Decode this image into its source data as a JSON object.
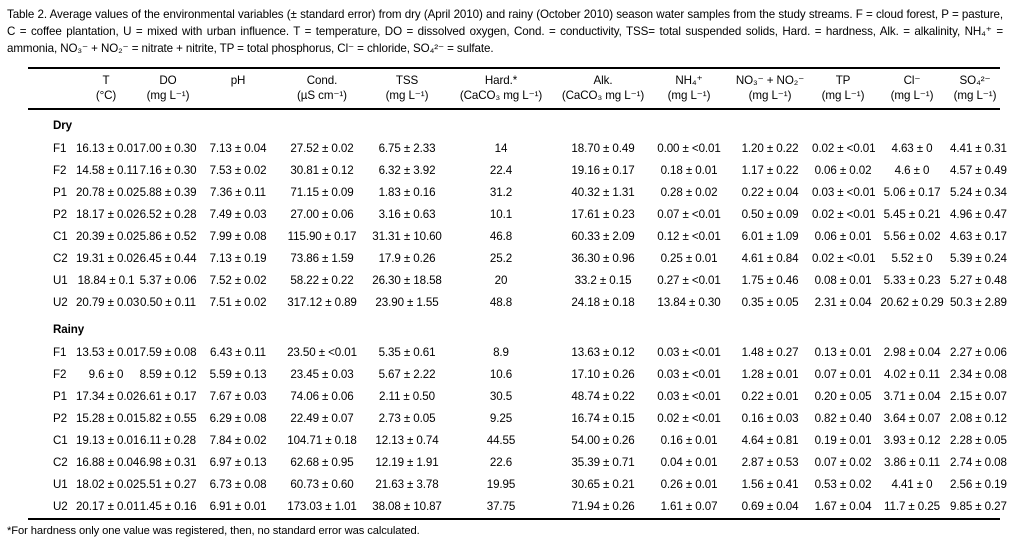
{
  "document": {
    "caption": "Table 2. Average values of the environmental variables (± standard error) from dry (April 2010) and rainy (October 2010) season water samples from the study streams. F = cloud forest, P = pasture, C = coffee plantation, U = mixed with urban influence. T = temperature, DO = dissolved oxygen, Cond. = conductivity, TSS= total suspended solids, Hard. = hardness, Alk. = alkalinity, NH₄⁺ = ammonia, NO₃⁻ + NO₂⁻ = nitrate + nitrite, TP = total phosphorus, Cl⁻ = chloride, SO₄²⁻ = sulfate.",
    "footnote": "*For hardness only one value was registered, then, no standard error was calculated."
  },
  "table": {
    "columns": [
      {
        "name": "",
        "unit": ""
      },
      {
        "name": "T",
        "unit": "(°C)"
      },
      {
        "name": "DO",
        "unit": "(mg L⁻¹)"
      },
      {
        "name": "pH",
        "unit": ""
      },
      {
        "name": "Cond.",
        "unit": "(µS cm⁻¹)"
      },
      {
        "name": "TSS",
        "unit": "(mg L⁻¹)"
      },
      {
        "name": "Hard.*",
        "unit": "(CaCO₃ mg L⁻¹)"
      },
      {
        "name": "Alk.",
        "unit": "(CaCO₃ mg L⁻¹)"
      },
      {
        "name": "NH₄⁺",
        "unit": "(mg L⁻¹)"
      },
      {
        "name": "NO₃⁻ + NO₂⁻",
        "unit": "(mg L⁻¹)"
      },
      {
        "name": "TP",
        "unit": "(mg L⁻¹)"
      },
      {
        "name": "Cl⁻",
        "unit": "(mg L⁻¹)"
      },
      {
        "name": "SO₄²⁻",
        "unit": "(mg L⁻¹)"
      }
    ],
    "sections": [
      {
        "label": "Dry",
        "rows": [
          {
            "site": "F1",
            "values": [
              "16.13 ± 0.01",
              "7.00 ± 0.30",
              "7.13 ± 0.04",
              "27.52 ± 0.02",
              "6.75 ± 2.33",
              "14",
              "18.70 ± 0.49",
              "0.00 ± <0.01",
              "1.20 ± 0.22",
              "0.02 ± <0.01",
              "4.63 ± 0",
              "4.41 ± 0.31"
            ]
          },
          {
            "site": "F2",
            "values": [
              "14.58 ± 0.11",
              "7.16 ± 0.30",
              "7.53 ± 0.02",
              "30.81 ± 0.12",
              "6.32 ± 3.92",
              "22.4",
              "19.16 ± 0.17",
              "0.18 ± 0.01",
              "1.17 ± 0.22",
              "0.06 ± 0.02",
              "4.6 ± 0",
              "4.57 ± 0.49"
            ]
          },
          {
            "site": "P1",
            "values": [
              "20.78 ± 0.02",
              "5.88 ± 0.39",
              "7.36 ± 0.11",
              "71.15 ± 0.09",
              "1.83 ± 0.16",
              "31.2",
              "40.32 ± 1.31",
              "0.28 ± 0.02",
              "0.22 ± 0.04",
              "0.03 ± <0.01",
              "5.06 ± 0.17",
              "5.24 ± 0.34"
            ]
          },
          {
            "site": "P2",
            "values": [
              "18.17 ± 0.02",
              "6.52 ± 0.28",
              "7.49 ± 0.03",
              "27.00 ± 0.06",
              "3.16 ± 0.63",
              "10.1",
              "17.61 ± 0.23",
              "0.07 ± <0.01",
              "0.50 ± 0.09",
              "0.02 ± <0.01",
              "5.45 ± 0.21",
              "4.96 ± 0.47"
            ]
          },
          {
            "site": "C1",
            "values": [
              "20.39 ± 0.02",
              "5.86 ± 0.52",
              "7.99 ± 0.08",
              "115.90 ± 0.17",
              "31.31 ± 10.60",
              "46.8",
              "60.33 ± 2.09",
              "0.12 ± <0.01",
              "6.01 ± 1.09",
              "0.06 ± 0.01",
              "5.56 ± 0.02",
              "4.63 ± 0.17"
            ]
          },
          {
            "site": "C2",
            "values": [
              "19.31 ± 0.02",
              "6.45 ± 0.44",
              "7.13 ± 0.19",
              "73.86 ± 1.59",
              "17.9 ± 0.26",
              "25.2",
              "36.30 ± 0.96",
              "0.25 ± 0.01",
              "4.61 ± 0.84",
              "0.02 ± <0.01",
              "5.52 ± 0",
              "5.39 ± 0.24"
            ]
          },
          {
            "site": "U1",
            "values": [
              "18.84 ± 0.1",
              "5.37 ± 0.06",
              "7.52 ± 0.02",
              "58.22 ± 0.22",
              "26.30 ± 18.58",
              "20",
              "33.2 ± 0.15",
              "0.27 ± <0.01",
              "1.75 ± 0.46",
              "0.08 ± 0.01",
              "5.33 ± 0.23",
              "5.27 ± 0.48"
            ]
          },
          {
            "site": "U2",
            "values": [
              "20.79 ± 0.03",
              "0.50 ± 0.11",
              "7.51 ± 0.02",
              "317.12 ± 0.89",
              "23.90 ± 1.55",
              "48.8",
              "24.18 ± 0.18",
              "13.84 ± 0.30",
              "0.35 ± 0.05",
              "2.31 ± 0.04",
              "20.62 ± 0.29",
              "50.3 ± 2.89"
            ]
          }
        ]
      },
      {
        "label": "Rainy",
        "rows": [
          {
            "site": "F1",
            "values": [
              "13.53 ± 0.01",
              "7.59 ± 0.08",
              "6.43 ± 0.11",
              "23.50 ± <0.01",
              "5.35 ± 0.61",
              "8.9",
              "13.63 ± 0.12",
              "0.03 ± <0.01",
              "1.48 ± 0.27",
              "0.13 ± 0.01",
              "2.98 ± 0.04",
              "2.27 ± 0.06"
            ]
          },
          {
            "site": "F2",
            "values": [
              "9.6 ± 0",
              "8.59 ± 0.12",
              "5.59 ± 0.13",
              "23.45 ± 0.03",
              "5.67 ± 2.22",
              "10.6",
              "17.10 ± 0.26",
              "0.03 ± <0.01",
              "1.28 ± 0.01",
              "0.07 ± 0.01",
              "4.02 ± 0.11",
              "2.34 ± 0.08"
            ]
          },
          {
            "site": "P1",
            "values": [
              "17.34 ± 0.02",
              "6.61 ± 0.17",
              "7.67 ± 0.03",
              "74.06 ± 0.06",
              "2.11 ± 0.50",
              "30.5",
              "48.74 ± 0.22",
              "0.03 ± <0.01",
              "0.22 ± 0.01",
              "0.20 ± 0.05",
              "3.71 ± 0.04",
              "2.15 ± 0.07"
            ]
          },
          {
            "site": "P2",
            "values": [
              "15.28 ± 0.01",
              "5.82 ± 0.55",
              "6.29 ± 0.08",
              "22.49 ± 0.07",
              "2.73 ± 0.05",
              "9.25",
              "16.74 ± 0.15",
              "0.02 ± <0.01",
              "0.16 ± 0.03",
              "0.82 ± 0.40",
              "3.64 ± 0.07",
              "2.08 ± 0.12"
            ]
          },
          {
            "site": "C1",
            "values": [
              "19.13 ± 0.01",
              "6.11 ± 0.28",
              "7.84 ± 0.02",
              "104.71 ± 0.18",
              "12.13 ± 0.74",
              "44.55",
              "54.00 ± 0.26",
              "0.16 ± 0.01",
              "4.64 ± 0.81",
              "0.19 ± 0.01",
              "3.93 ± 0.12",
              "2.28 ± 0.05"
            ]
          },
          {
            "site": "C2",
            "values": [
              "16.88 ± 0.04",
              "6.98 ± 0.31",
              "6.97 ± 0.13",
              "62.68 ± 0.95",
              "12.19 ± 1.91",
              "22.6",
              "35.39 ± 0.71",
              "0.04 ± 0.01",
              "2.87 ± 0.53",
              "0.07 ± 0.02",
              "3.86 ± 0.11",
              "2.74 ± 0.08"
            ]
          },
          {
            "site": "U1",
            "values": [
              "18.02 ± 0.02",
              "5.51 ± 0.27",
              "6.73 ± 0.08",
              "60.73 ± 0.60",
              "21.63 ± 3.78",
              "19.95",
              "30.65 ± 0.21",
              "0.26 ± 0.01",
              "1.56 ± 0.41",
              "0.53 ± 0.02",
              "4.41 ± 0",
              "2.56 ± 0.19"
            ]
          },
          {
            "site": "U2",
            "values": [
              "20.17 ± 0.01",
              "1.45 ± 0.16",
              "6.91 ± 0.01",
              "173.03 ± 1.01",
              "38.08 ± 10.87",
              "37.75",
              "71.94 ± 0.26",
              "1.61 ± 0.07",
              "0.69 ± 0.04",
              "1.67 ± 0.04",
              "11.7 ± 0.25",
              "9.85 ± 0.27"
            ]
          }
        ]
      }
    ]
  }
}
